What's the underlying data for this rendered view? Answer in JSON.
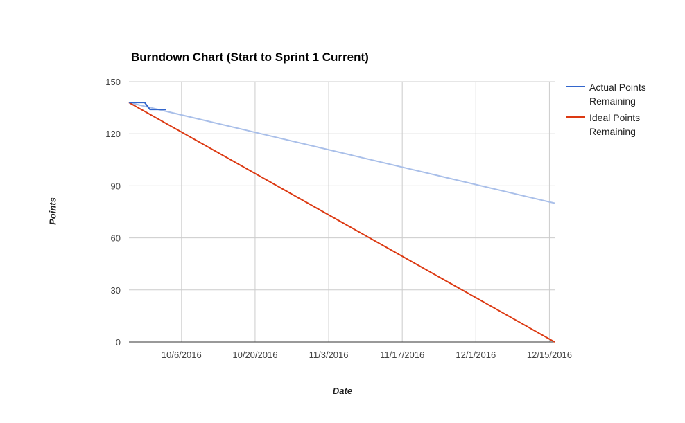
{
  "chart_data": {
    "type": "line",
    "title": "Burndown Chart (Start to Sprint 1 Current)",
    "xlabel": "Date",
    "ylabel": "Points",
    "x_axis_type": "date",
    "xlim": [
      "2016-09-26",
      "2016-12-16"
    ],
    "ylim": [
      0,
      150
    ],
    "y_ticks": [
      0,
      30,
      60,
      90,
      120,
      150
    ],
    "x_ticks": [
      {
        "date": "2016-10-06",
        "label": "10/6/2016"
      },
      {
        "date": "2016-10-20",
        "label": "10/20/2016"
      },
      {
        "date": "2016-11-03",
        "label": "11/3/2016"
      },
      {
        "date": "2016-11-17",
        "label": "11/17/2016"
      },
      {
        "date": "2016-12-01",
        "label": "12/1/2016"
      },
      {
        "date": "2016-12-15",
        "label": "12/15/2016"
      }
    ],
    "grid": true,
    "legend_position": "right",
    "series": [
      {
        "name": "Actual Points Remaining",
        "color": "#3366cc",
        "points": [
          {
            "x": "2016-09-26",
            "y": 138
          },
          {
            "x": "2016-09-29",
            "y": 138
          },
          {
            "x": "2016-09-30",
            "y": 134
          },
          {
            "x": "2016-10-03",
            "y": 134
          }
        ]
      },
      {
        "name": "Ideal Points Remaining",
        "color": "#dc3912",
        "points": [
          {
            "x": "2016-09-26",
            "y": 138
          },
          {
            "x": "2016-12-16",
            "y": 0
          }
        ]
      }
    ],
    "trendline": {
      "series": "Actual Points Remaining",
      "color": "#a9bfe9",
      "points": [
        {
          "x": "2016-09-26",
          "y": 138
        },
        {
          "x": "2016-12-16",
          "y": 80
        }
      ]
    }
  }
}
